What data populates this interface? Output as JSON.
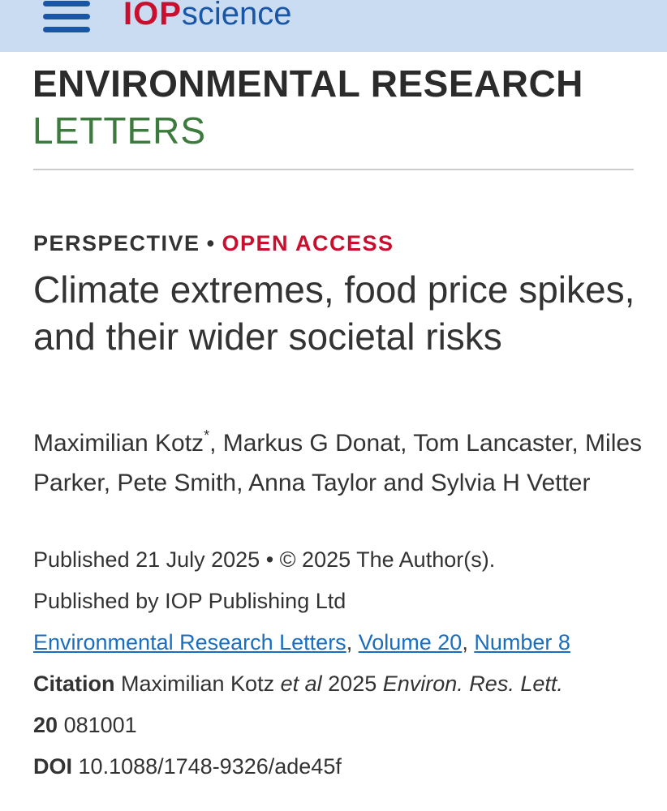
{
  "header": {
    "logo_iop": "IOP",
    "logo_science": "science",
    "background": "#c9dcf1",
    "icon": "hamburger-menu-icon"
  },
  "journal": {
    "title": "ENVIRONMENTAL RESEARCH",
    "subtitle": "LETTERS"
  },
  "article": {
    "type": "PERSPECTIVE",
    "separator": "•",
    "access": "OPEN ACCESS",
    "title": "Climate extremes, food price spikes, and their wider societal risks",
    "authors": {
      "first": "Maximilian Kotz",
      "first_marker": "*",
      "rest": ", Markus G Donat, Tom Lancaster, Miles Parker, Pete Smith, Anna Taylor and Sylvia H Vetter"
    },
    "published": "Published 21 July 2025 • © 2025 The Author(s).",
    "publisher": "Published by IOP Publishing Ltd",
    "links": {
      "journal": "Environmental Research Letters",
      "volume": "Volume 20",
      "number": "Number 8",
      "comma": ","
    },
    "citation": {
      "label": "Citation",
      "authors": "Maximilian Kotz",
      "et_al": "et al",
      "year": "2025",
      "journal_abbrev": "Environ. Res. Lett.",
      "volume": "20",
      "article_number": "081001"
    },
    "doi": {
      "label": "DOI",
      "value": "10.1088/1748-9326/ade45f"
    }
  },
  "colors": {
    "accent_red": "#c8102e",
    "brand_blue": "#1a56a6",
    "link_blue": "#1a6ec0",
    "journal_green": "#3d7a3d"
  }
}
